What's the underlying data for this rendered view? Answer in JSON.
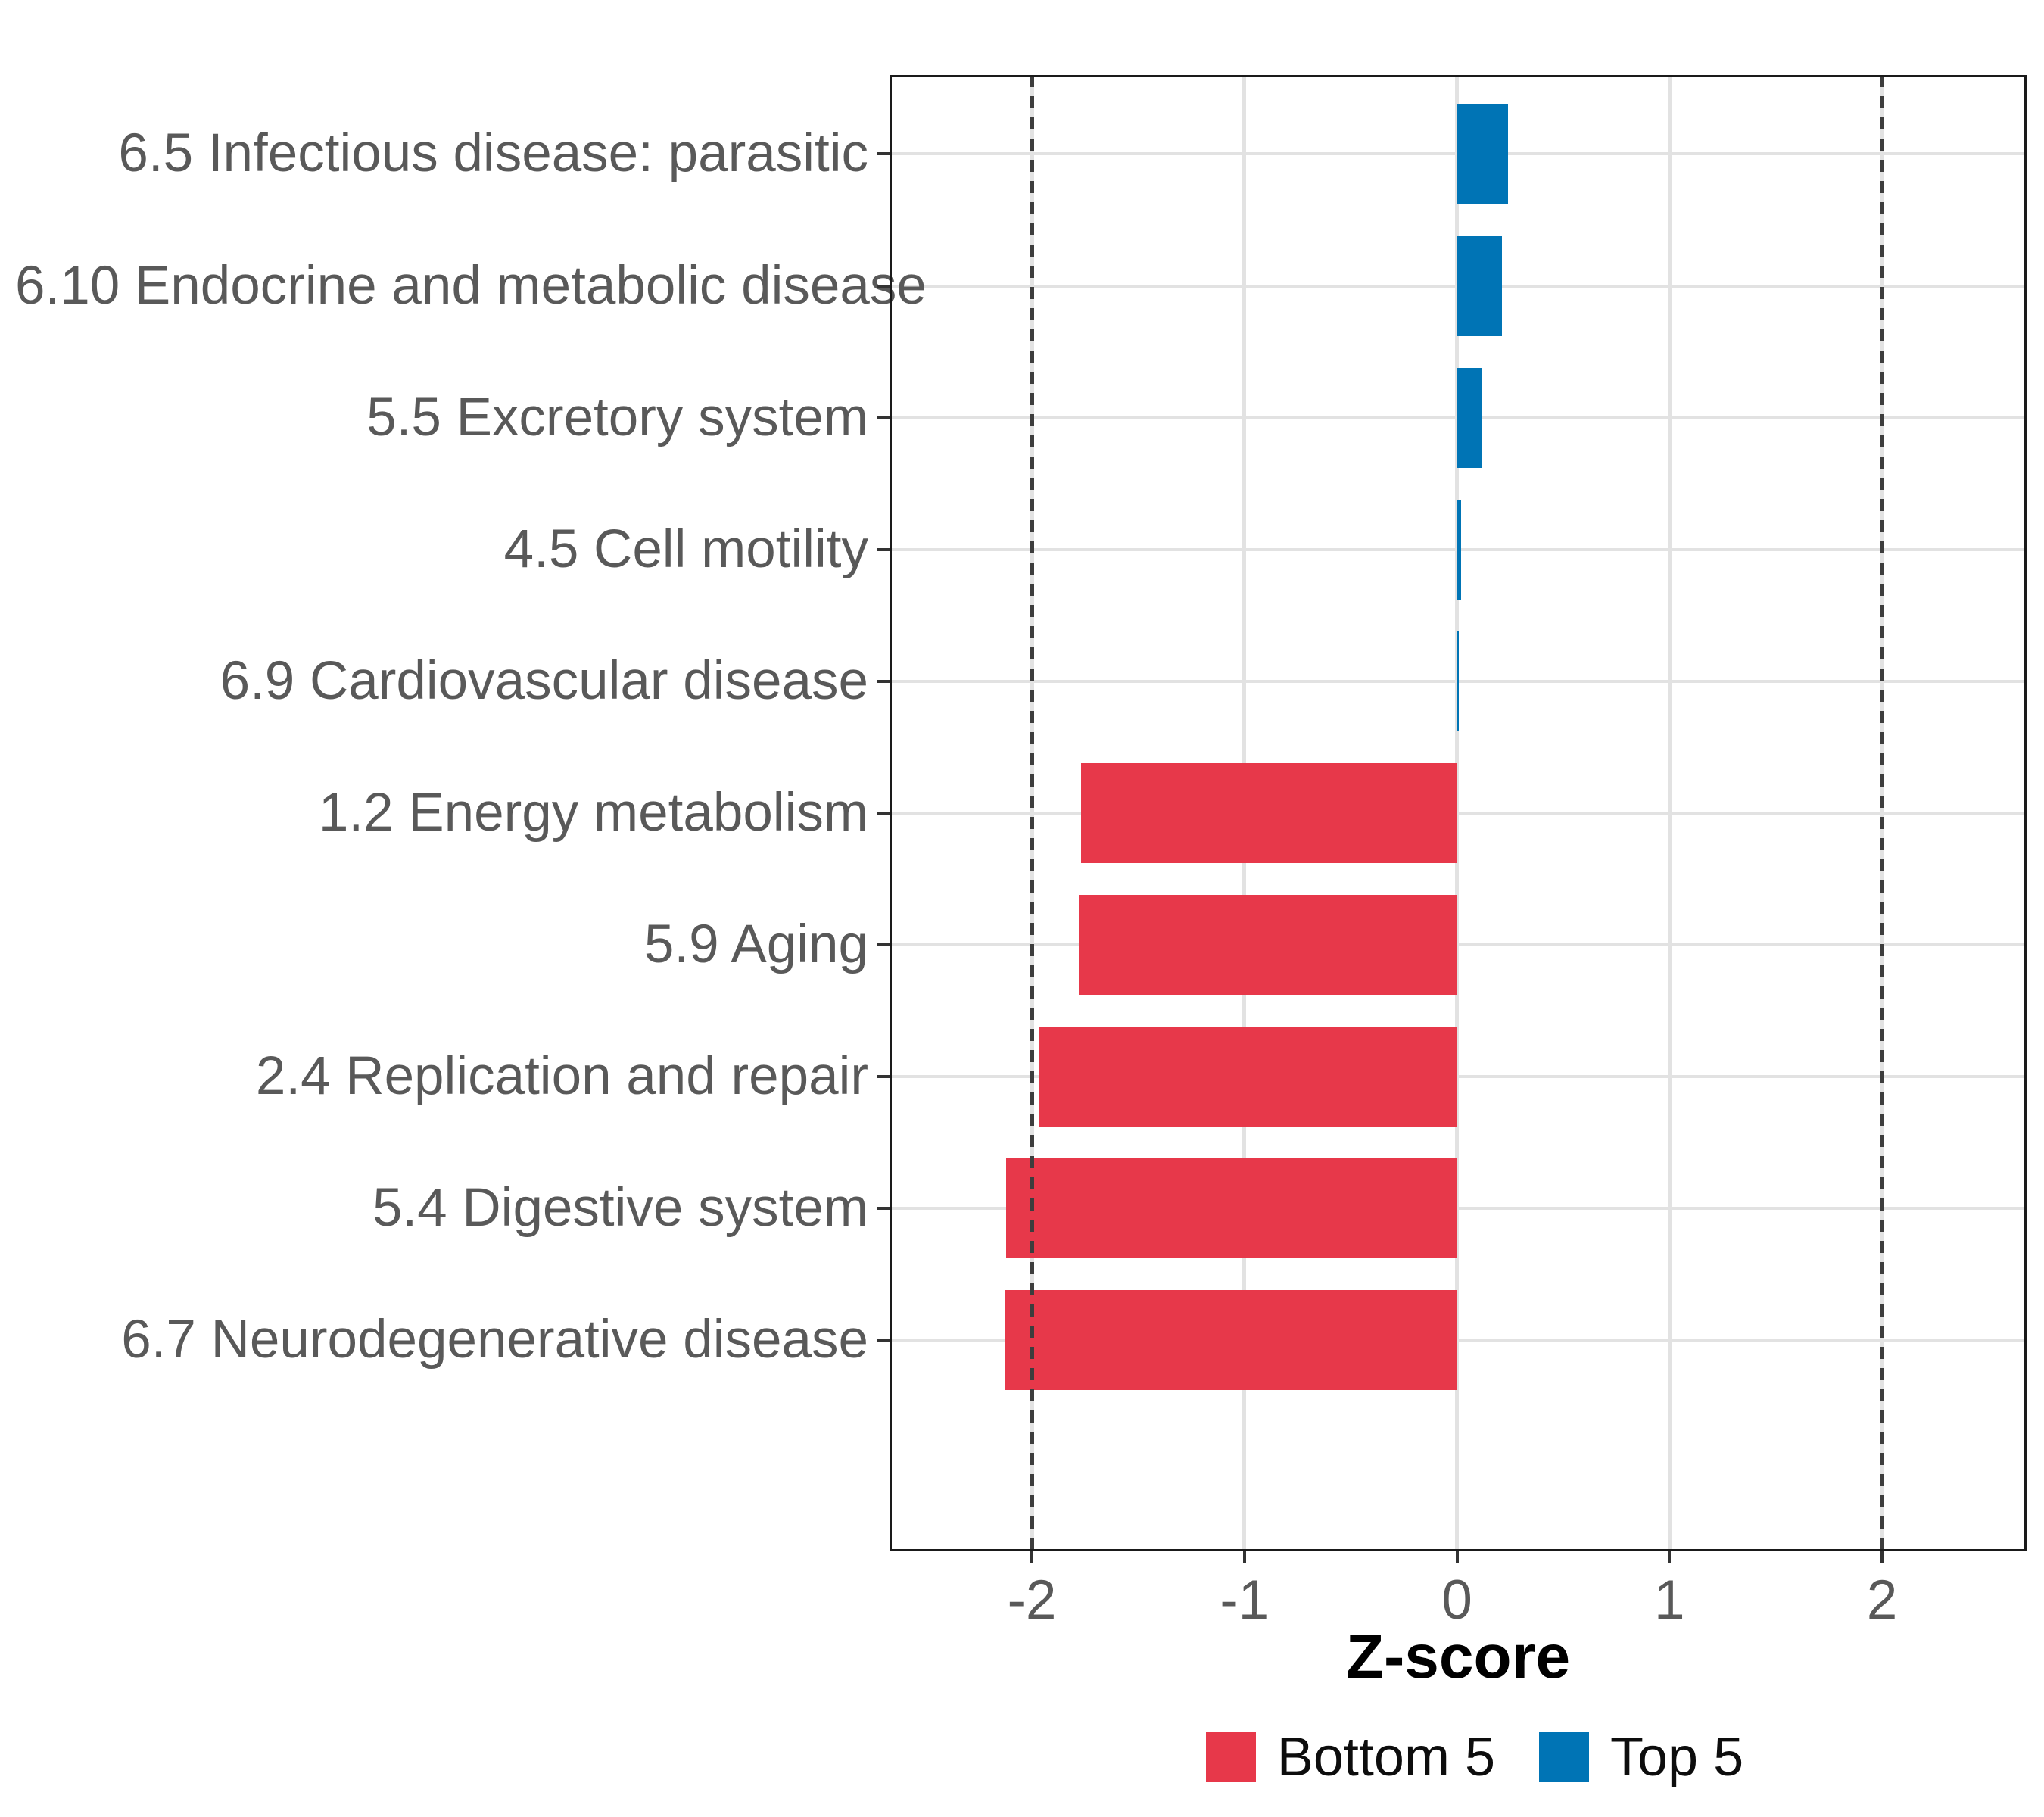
{
  "chart_data": {
    "type": "bar",
    "orientation": "horizontal",
    "title": "",
    "categories": [
      "6.5 Infectious disease: parasitic",
      "6.10 Endocrine and metabolic disease",
      "5.5 Excretory system",
      "4.5 Cell motility",
      "6.9 Cardiovascular disease",
      "1.2 Energy metabolism",
      "5.9 Aging",
      "2.4 Replication and repair",
      "5.4 Digestive system",
      "6.7 Neurodegenerative disease"
    ],
    "values": [
      0.24,
      0.21,
      0.12,
      0.02,
      0.004,
      -1.77,
      -1.78,
      -1.97,
      -2.12,
      -2.13
    ],
    "group": [
      "Top 5",
      "Top 5",
      "Top 5",
      "Top 5",
      "Top 5",
      "Bottom 5",
      "Bottom 5",
      "Bottom 5",
      "Bottom 5",
      "Bottom 5"
    ],
    "group_colors": {
      "Bottom 5": "#E7384A",
      "Top 5": "#0074B5"
    },
    "x_axis": {
      "label": "Z-score",
      "ticks": [
        -2,
        -1,
        0,
        1,
        2
      ],
      "tick_labels": [
        "-2",
        "-1",
        "0",
        "1",
        "2"
      ],
      "limits": [
        -2.67,
        2.68
      ]
    },
    "reference_lines": {
      "values": [
        -2,
        2
      ],
      "style": "dashed"
    },
    "grid": {
      "horizontal": true,
      "vertical": true,
      "color": "#e2e2e2"
    },
    "legend": {
      "position": "bottom",
      "entries": [
        {
          "label": "Bottom 5",
          "color": "#E7384A"
        },
        {
          "label": "Top 5",
          "color": "#0074B5"
        }
      ]
    }
  }
}
